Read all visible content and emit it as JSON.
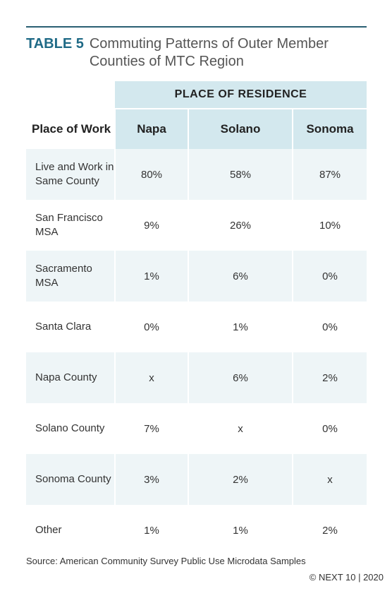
{
  "header": {
    "table_label": "TABLE 5",
    "title": "Commuting Patterns of Outer Member Counties of MTC Region"
  },
  "table": {
    "column_group": "PLACE OF RESIDENCE",
    "row_header": "Place of Work",
    "columns": [
      "Napa",
      "Solano",
      "Sonoma"
    ],
    "rows": [
      [
        "Live and Work in Same County",
        "80%",
        "58%",
        "87%"
      ],
      [
        "San Francisco MSA",
        "9%",
        "26%",
        "10%"
      ],
      [
        "Sacramento MSA",
        "1%",
        "6%",
        "0%"
      ],
      [
        "Santa Clara",
        "0%",
        "1%",
        "0%"
      ],
      [
        "Napa County",
        "x",
        "6%",
        "2%"
      ],
      [
        "Solano County",
        "7%",
        "x",
        "0%"
      ],
      [
        "Sonoma County",
        "3%",
        "2%",
        "x"
      ],
      [
        "Other",
        "1%",
        "1%",
        "2%"
      ]
    ]
  },
  "footer": {
    "source": "Source: American Community Survey Public Use Microdata Samples",
    "copyright": "© NEXT 10 | 2020"
  }
}
